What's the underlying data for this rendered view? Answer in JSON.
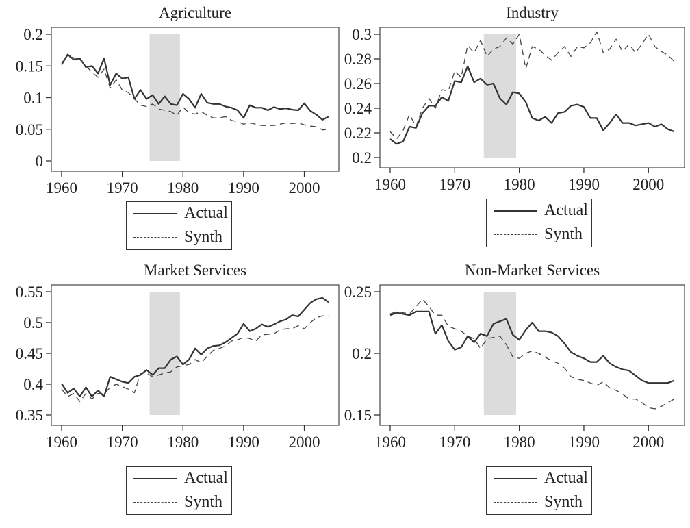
{
  "chart_data": [
    {
      "type": "line",
      "title": "Agriculture",
      "xlim": [
        1960,
        2004
      ],
      "ylim": [
        0,
        0.2
      ],
      "x_ticks": [
        "1960",
        "1970",
        "1980",
        "1990",
        "2000"
      ],
      "y_ticks": [
        "0",
        "0.05",
        "0.1",
        "0.15",
        "0.2"
      ],
      "x_tick_values": [
        1960,
        1970,
        1980,
        1990,
        2000
      ],
      "y_tick_values": [
        0,
        0.05,
        0.1,
        0.15,
        0.2
      ],
      "shaded_interval": [
        1974.5,
        1979.5
      ],
      "series": [
        {
          "name": "Actual",
          "style": "solid",
          "x": [
            1960,
            1961,
            1962,
            1963,
            1964,
            1965,
            1966,
            1967,
            1968,
            1969,
            1970,
            1971,
            1972,
            1973,
            1974,
            1975,
            1976,
            1977,
            1978,
            1979,
            1980,
            1981,
            1982,
            1983,
            1984,
            1985,
            1986,
            1987,
            1988,
            1989,
            1990,
            1991,
            1992,
            1993,
            1994,
            1995,
            1996,
            1997,
            1998,
            1999,
            2000,
            2001,
            2002,
            2003,
            2004
          ],
          "values": [
            0.152,
            0.168,
            0.16,
            0.162,
            0.148,
            0.15,
            0.138,
            0.162,
            0.12,
            0.138,
            0.13,
            0.132,
            0.098,
            0.112,
            0.098,
            0.104,
            0.09,
            0.102,
            0.09,
            0.088,
            0.106,
            0.098,
            0.084,
            0.106,
            0.092,
            0.09,
            0.09,
            0.086,
            0.084,
            0.08,
            0.068,
            0.088,
            0.084,
            0.084,
            0.08,
            0.085,
            0.082,
            0.083,
            0.081,
            0.08,
            0.091,
            0.079,
            0.073,
            0.065,
            0.07
          ]
        },
        {
          "name": "Synth",
          "style": "dashed",
          "x": [
            1960,
            1961,
            1962,
            1963,
            1964,
            1965,
            1966,
            1967,
            1968,
            1969,
            1970,
            1971,
            1972,
            1973,
            1974,
            1975,
            1976,
            1977,
            1978,
            1979,
            1980,
            1981,
            1982,
            1983,
            1984,
            1985,
            1986,
            1987,
            1988,
            1989,
            1990,
            1991,
            1992,
            1993,
            1994,
            1995,
            1996,
            1997,
            1998,
            1999,
            2000,
            2001,
            2002,
            2003,
            2004
          ],
          "values": [
            0.155,
            0.165,
            0.163,
            0.16,
            0.15,
            0.14,
            0.132,
            0.145,
            0.115,
            0.128,
            0.112,
            0.108,
            0.098,
            0.088,
            0.086,
            0.09,
            0.082,
            0.08,
            0.078,
            0.072,
            0.085,
            0.076,
            0.074,
            0.078,
            0.072,
            0.068,
            0.068,
            0.07,
            0.064,
            0.062,
            0.058,
            0.06,
            0.058,
            0.056,
            0.056,
            0.056,
            0.058,
            0.06,
            0.059,
            0.06,
            0.057,
            0.055,
            0.054,
            0.049,
            0.05
          ]
        }
      ],
      "legend": [
        "Actual",
        "Synth"
      ]
    },
    {
      "type": "line",
      "title": "Industry",
      "xlim": [
        1960,
        2004
      ],
      "ylim": [
        0.2,
        0.3
      ],
      "x_ticks": [
        "1960",
        "1970",
        "1980",
        "1990",
        "2000"
      ],
      "y_ticks": [
        "0.2",
        "0.22",
        "0.24",
        "0.26",
        "0.28",
        "0.3"
      ],
      "x_tick_values": [
        1960,
        1970,
        1980,
        1990,
        2000
      ],
      "y_tick_values": [
        0.2,
        0.22,
        0.24,
        0.26,
        0.28,
        0.3
      ],
      "shaded_interval": [
        1974.5,
        1979.5
      ],
      "series": [
        {
          "name": "Actual",
          "style": "solid",
          "x": [
            1960,
            1961,
            1962,
            1963,
            1964,
            1965,
            1966,
            1967,
            1968,
            1969,
            1970,
            1971,
            1972,
            1973,
            1974,
            1975,
            1976,
            1977,
            1978,
            1979,
            1980,
            1981,
            1982,
            1983,
            1984,
            1985,
            1986,
            1987,
            1988,
            1989,
            1990,
            1991,
            1992,
            1993,
            1994,
            1995,
            1996,
            1997,
            1998,
            1999,
            2000,
            2001,
            2002,
            2003,
            2004
          ],
          "values": [
            0.215,
            0.211,
            0.213,
            0.225,
            0.224,
            0.236,
            0.242,
            0.242,
            0.249,
            0.246,
            0.262,
            0.261,
            0.274,
            0.261,
            0.264,
            0.259,
            0.26,
            0.248,
            0.243,
            0.253,
            0.252,
            0.245,
            0.232,
            0.23,
            0.233,
            0.228,
            0.236,
            0.237,
            0.242,
            0.243,
            0.241,
            0.232,
            0.232,
            0.222,
            0.228,
            0.235,
            0.228,
            0.228,
            0.226,
            0.227,
            0.228,
            0.225,
            0.227,
            0.223,
            0.221
          ]
        },
        {
          "name": "Synth",
          "style": "dashed",
          "x": [
            1960,
            1961,
            1962,
            1963,
            1964,
            1965,
            1966,
            1967,
            1968,
            1969,
            1970,
            1971,
            1972,
            1973,
            1974,
            1975,
            1976,
            1977,
            1978,
            1979,
            1980,
            1981,
            1982,
            1983,
            1984,
            1985,
            1986,
            1987,
            1988,
            1989,
            1990,
            1991,
            1992,
            1993,
            1994,
            1995,
            1996,
            1997,
            1998,
            1999,
            2000,
            2001,
            2002,
            2003,
            2004
          ],
          "values": [
            0.221,
            0.215,
            0.222,
            0.235,
            0.225,
            0.24,
            0.248,
            0.24,
            0.255,
            0.254,
            0.27,
            0.265,
            0.291,
            0.285,
            0.295,
            0.282,
            0.288,
            0.29,
            0.297,
            0.292,
            0.3,
            0.272,
            0.29,
            0.288,
            0.283,
            0.279,
            0.285,
            0.29,
            0.282,
            0.29,
            0.289,
            0.293,
            0.302,
            0.285,
            0.288,
            0.296,
            0.286,
            0.292,
            0.285,
            0.292,
            0.3,
            0.29,
            0.286,
            0.283,
            0.278
          ]
        }
      ],
      "legend": [
        "Actual",
        "Synth"
      ]
    },
    {
      "type": "line",
      "title": "Market Services",
      "xlim": [
        1960,
        2004
      ],
      "ylim": [
        0.35,
        0.55
      ],
      "x_ticks": [
        "1960",
        "1970",
        "1980",
        "1990",
        "2000"
      ],
      "y_ticks": [
        "0.35",
        "0.4",
        "0.45",
        "0.5",
        "0.55"
      ],
      "x_tick_values": [
        1960,
        1970,
        1980,
        1990,
        2000
      ],
      "y_tick_values": [
        0.35,
        0.4,
        0.45,
        0.5,
        0.55
      ],
      "shaded_interval": [
        1974.5,
        1979.5
      ],
      "series": [
        {
          "name": "Actual",
          "style": "solid",
          "x": [
            1960,
            1961,
            1962,
            1963,
            1964,
            1965,
            1966,
            1967,
            1968,
            1969,
            1970,
            1971,
            1972,
            1973,
            1974,
            1975,
            1976,
            1977,
            1978,
            1979,
            1980,
            1981,
            1982,
            1983,
            1984,
            1985,
            1986,
            1987,
            1988,
            1989,
            1990,
            1991,
            1992,
            1993,
            1994,
            1995,
            1996,
            1997,
            1998,
            1999,
            2000,
            2001,
            2002,
            2003,
            2004
          ],
          "values": [
            0.401,
            0.386,
            0.393,
            0.38,
            0.395,
            0.38,
            0.39,
            0.38,
            0.412,
            0.408,
            0.404,
            0.402,
            0.412,
            0.415,
            0.423,
            0.415,
            0.426,
            0.426,
            0.44,
            0.445,
            0.432,
            0.44,
            0.458,
            0.448,
            0.458,
            0.462,
            0.463,
            0.468,
            0.475,
            0.482,
            0.498,
            0.486,
            0.49,
            0.497,
            0.493,
            0.497,
            0.502,
            0.505,
            0.512,
            0.51,
            0.521,
            0.532,
            0.538,
            0.54,
            0.533
          ]
        },
        {
          "name": "Synth",
          "style": "dashed",
          "x": [
            1960,
            1961,
            1962,
            1963,
            1964,
            1965,
            1966,
            1967,
            1968,
            1969,
            1970,
            1971,
            1972,
            1973,
            1974,
            1975,
            1976,
            1977,
            1978,
            1979,
            1980,
            1981,
            1982,
            1983,
            1984,
            1985,
            1986,
            1987,
            1988,
            1989,
            1990,
            1991,
            1992,
            1993,
            1994,
            1995,
            1996,
            1997,
            1998,
            1999,
            2000,
            2001,
            2002,
            2003,
            2004
          ],
          "values": [
            0.392,
            0.38,
            0.385,
            0.372,
            0.385,
            0.376,
            0.385,
            0.384,
            0.395,
            0.4,
            0.396,
            0.392,
            0.386,
            0.418,
            0.418,
            0.412,
            0.415,
            0.418,
            0.42,
            0.428,
            0.43,
            0.432,
            0.44,
            0.435,
            0.445,
            0.455,
            0.458,
            0.462,
            0.47,
            0.472,
            0.476,
            0.474,
            0.47,
            0.48,
            0.481,
            0.482,
            0.488,
            0.49,
            0.49,
            0.495,
            0.49,
            0.5,
            0.508,
            0.511,
            0.51
          ]
        }
      ],
      "legend": [
        "Actual",
        "Synth"
      ]
    },
    {
      "type": "line",
      "title": "Non-Market Services",
      "xlim": [
        1960,
        2004
      ],
      "ylim": [
        0.15,
        0.25
      ],
      "x_ticks": [
        "1960",
        "1970",
        "1980",
        "1990",
        "2000"
      ],
      "y_ticks": [
        "0.15",
        "0.2",
        "0.25"
      ],
      "x_tick_values": [
        1960,
        1970,
        1980,
        1990,
        2000
      ],
      "y_tick_values": [
        0.15,
        0.2,
        0.25
      ],
      "shaded_interval": [
        1974.5,
        1979.5
      ],
      "series": [
        {
          "name": "Actual",
          "style": "solid",
          "x": [
            1960,
            1961,
            1962,
            1963,
            1964,
            1965,
            1966,
            1967,
            1968,
            1969,
            1970,
            1971,
            1972,
            1973,
            1974,
            1975,
            1976,
            1977,
            1978,
            1979,
            1980,
            1981,
            1982,
            1983,
            1984,
            1985,
            1986,
            1987,
            1988,
            1989,
            1990,
            1991,
            1992,
            1993,
            1994,
            1995,
            1996,
            1997,
            1998,
            1999,
            2000,
            2001,
            2002,
            2003,
            2004
          ],
          "values": [
            0.231,
            0.233,
            0.232,
            0.231,
            0.234,
            0.234,
            0.234,
            0.216,
            0.223,
            0.21,
            0.203,
            0.205,
            0.214,
            0.209,
            0.216,
            0.214,
            0.224,
            0.226,
            0.228,
            0.215,
            0.211,
            0.219,
            0.225,
            0.218,
            0.218,
            0.217,
            0.214,
            0.208,
            0.201,
            0.198,
            0.196,
            0.193,
            0.193,
            0.198,
            0.192,
            0.189,
            0.187,
            0.186,
            0.182,
            0.178,
            0.176,
            0.176,
            0.176,
            0.176,
            0.178
          ]
        },
        {
          "name": "Synth",
          "style": "dashed",
          "x": [
            1960,
            1961,
            1962,
            1963,
            1964,
            1965,
            1966,
            1967,
            1968,
            1969,
            1970,
            1971,
            1972,
            1973,
            1974,
            1975,
            1976,
            1977,
            1978,
            1979,
            1980,
            1981,
            1982,
            1983,
            1984,
            1985,
            1986,
            1987,
            1988,
            1989,
            1990,
            1991,
            1992,
            1993,
            1994,
            1995,
            1996,
            1997,
            1998,
            1999,
            2000,
            2001,
            2002,
            2003,
            2004
          ],
          "values": [
            0.232,
            0.234,
            0.233,
            0.232,
            0.238,
            0.244,
            0.238,
            0.231,
            0.231,
            0.222,
            0.22,
            0.218,
            0.214,
            0.212,
            0.204,
            0.212,
            0.213,
            0.214,
            0.207,
            0.197,
            0.196,
            0.2,
            0.202,
            0.2,
            0.197,
            0.194,
            0.192,
            0.188,
            0.181,
            0.179,
            0.178,
            0.176,
            0.174,
            0.177,
            0.172,
            0.17,
            0.167,
            0.163,
            0.163,
            0.16,
            0.156,
            0.155,
            0.157,
            0.16,
            0.163
          ]
        }
      ],
      "legend": [
        "Actual",
        "Synth"
      ]
    }
  ]
}
